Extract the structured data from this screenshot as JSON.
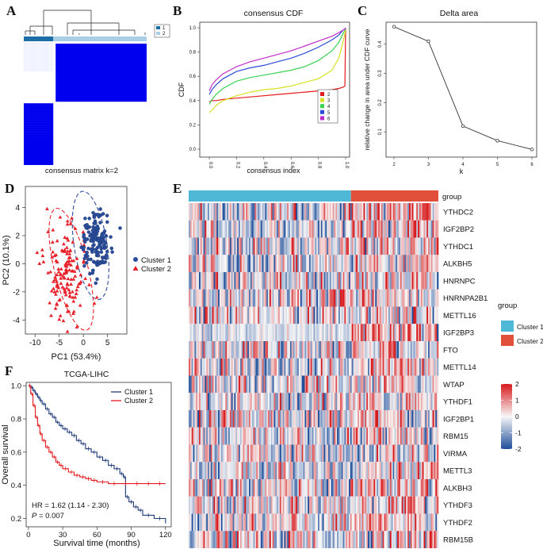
{
  "panel_letters": {
    "A": "A",
    "B": "B",
    "C": "C",
    "D": "D",
    "E": "E",
    "F": "F"
  },
  "colors": {
    "cluster1_blue": "#0000ee",
    "cluster_dark_blue": "#1c6ea8",
    "cluster_light_blue": "#a9cfe8",
    "pca_cluster1": "#2a4d9c",
    "pca_cluster2": "#e8202a",
    "km_cluster1": "#1f3a7a",
    "km_cluster2": "#e41a1c",
    "heat_group1": "#4fb8d6",
    "heat_group2": "#e0503a",
    "heat_high": "#d7191c",
    "heat_mid": "#f7f7f7",
    "heat_low": "#1f4e9a"
  },
  "chart_data": [
    {
      "id": "A",
      "type": "heatmap",
      "title": "",
      "xlabel": "consensus matrix k=2",
      "legend": [
        "1",
        "2"
      ],
      "clusters": [
        {
          "name": "1",
          "fraction": 0.24
        },
        {
          "name": "2",
          "fraction": 0.76
        }
      ]
    },
    {
      "id": "B",
      "type": "line",
      "title": "consensus CDF",
      "xlabel": "consensus index",
      "ylabel": "CDF",
      "xlim": [
        0,
        1
      ],
      "ylim": [
        0,
        1
      ],
      "xticks": [
        "0.0",
        "0.2",
        "0.4",
        "0.6",
        "0.8",
        "1.0"
      ],
      "yticks": [
        "0.0",
        "0.2",
        "0.4",
        "0.6",
        "0.8",
        "1.0"
      ],
      "x": [
        0.0,
        0.02,
        0.05,
        0.1,
        0.2,
        0.3,
        0.4,
        0.5,
        0.6,
        0.7,
        0.8,
        0.9,
        0.95,
        0.98,
        0.995,
        1.0
      ],
      "series": [
        {
          "name": "2",
          "color": "#e41a1c",
          "values": [
            0.39,
            0.4,
            0.4,
            0.41,
            0.42,
            0.43,
            0.44,
            0.45,
            0.46,
            0.47,
            0.48,
            0.49,
            0.5,
            0.51,
            0.52,
            1.0
          ]
        },
        {
          "name": "3",
          "color": "#d9e021",
          "values": [
            0.3,
            0.32,
            0.36,
            0.4,
            0.44,
            0.47,
            0.49,
            0.5,
            0.52,
            0.55,
            0.58,
            0.65,
            0.75,
            0.88,
            0.95,
            1.0
          ]
        },
        {
          "name": "4",
          "color": "#39d353",
          "values": [
            0.37,
            0.41,
            0.45,
            0.5,
            0.56,
            0.59,
            0.61,
            0.63,
            0.65,
            0.68,
            0.73,
            0.81,
            0.88,
            0.95,
            0.98,
            1.0
          ]
        },
        {
          "name": "5",
          "color": "#2a4bd7",
          "values": [
            0.45,
            0.49,
            0.53,
            0.58,
            0.64,
            0.67,
            0.69,
            0.72,
            0.75,
            0.79,
            0.84,
            0.9,
            0.94,
            0.98,
            0.99,
            1.0
          ]
        },
        {
          "name": "6",
          "color": "#c02cc9",
          "values": [
            0.48,
            0.53,
            0.57,
            0.62,
            0.68,
            0.72,
            0.75,
            0.78,
            0.81,
            0.85,
            0.89,
            0.93,
            0.96,
            0.98,
            0.99,
            1.0
          ]
        }
      ],
      "legend": [
        "2",
        "3",
        "4",
        "5",
        "6"
      ]
    },
    {
      "id": "C",
      "type": "line",
      "title": "Delta area",
      "xlabel": "k",
      "ylabel": "relative change in area under CDF curve",
      "x": [
        2,
        3,
        4,
        5,
        6
      ],
      "values": [
        0.46,
        0.41,
        0.12,
        0.07,
        0.04
      ],
      "xticks": [
        "2",
        "3",
        "4",
        "5",
        "6"
      ],
      "yticks": [
        "0.1",
        "0.2",
        "0.3",
        "0.4"
      ],
      "ylim": [
        0.03,
        0.47
      ]
    },
    {
      "id": "D",
      "type": "scatter",
      "title": "",
      "xlabel": "PC1 (53.4%)",
      "ylabel": "PC2 (10.1%)",
      "xlim": [
        -12,
        9
      ],
      "ylim": [
        -5,
        5.5
      ],
      "xticks": [
        "-10",
        "-5",
        "0",
        "5"
      ],
      "yticks": [
        "-4",
        "-2",
        "0",
        "2",
        "4"
      ],
      "legend": [
        "Cluster 1",
        "Cluster 2"
      ],
      "series": [
        {
          "name": "Cluster 1",
          "marker": "circle",
          "center": [
            2.5,
            1.5
          ],
          "spread": [
            2.2,
            1.4
          ],
          "n": 150
        },
        {
          "name": "Cluster 2",
          "marker": "triangle",
          "center": [
            -3.5,
            -0.8
          ],
          "spread": [
            3.0,
            1.7
          ],
          "n": 150
        }
      ],
      "ellipses": [
        {
          "name": "Cluster 1",
          "center": [
            1.5,
            1.3
          ],
          "radii": [
            6.2,
            4.1
          ],
          "rotation": -25
        },
        {
          "name": "Cluster 2",
          "center": [
            -2.5,
            -0.4
          ],
          "radii": [
            6.3,
            4.7
          ],
          "rotation": -40
        }
      ]
    },
    {
      "id": "E",
      "type": "heatmap",
      "title": "",
      "annotation_label": "group",
      "genes": [
        "YTHDC2",
        "IGF2BP2",
        "YTHDC1",
        "ALKBH5",
        "HNRNPC",
        "HNRNPA2B1",
        "METTL16",
        "IGF2BP3",
        "FTO",
        "METTL14",
        "WTAP",
        "YTHDF1",
        "IGF2BP1",
        "RBM15",
        "VIRMA",
        "METTL3",
        "ALKBH3",
        "YTHDF3",
        "YTHDF2",
        "RBM15B"
      ],
      "group_split": 0.65,
      "group_legend_title": "group",
      "group_legend": [
        "Cluster 1",
        "Cluster 2"
      ],
      "colorbar_ticks": [
        "2",
        "1",
        "0",
        "-1",
        "-2"
      ],
      "value_range": [
        -2,
        2
      ]
    },
    {
      "id": "F",
      "type": "line",
      "title": "TCGA-LIHC",
      "xlabel": "Survival time (months)",
      "ylabel": "Overall survival",
      "xlim": [
        -2,
        125
      ],
      "ylim": [
        0.15,
        1.02
      ],
      "xticks": [
        "0",
        "30",
        "60",
        "90",
        "120"
      ],
      "yticks": [
        "0.2",
        "0.4",
        "0.6",
        "0.8",
        "1.0"
      ],
      "legend": [
        "Cluster 1",
        "Cluster 2"
      ],
      "series": [
        {
          "name": "Cluster 1",
          "x": [
            0,
            2,
            4,
            6,
            8,
            10,
            12,
            15,
            18,
            21,
            24,
            27,
            30,
            34,
            38,
            42,
            46,
            50,
            55,
            60,
            65,
            70,
            75,
            80,
            83,
            85,
            88,
            92,
            96,
            100,
            110,
            120
          ],
          "values": [
            1.0,
            0.99,
            0.97,
            0.95,
            0.93,
            0.91,
            0.89,
            0.86,
            0.83,
            0.81,
            0.78,
            0.76,
            0.74,
            0.72,
            0.7,
            0.67,
            0.65,
            0.62,
            0.6,
            0.57,
            0.55,
            0.52,
            0.5,
            0.47,
            0.45,
            0.33,
            0.3,
            0.27,
            0.25,
            0.22,
            0.2,
            0.17
          ]
        },
        {
          "name": "Cluster 2",
          "x": [
            0,
            2,
            4,
            6,
            8,
            10,
            12,
            15,
            18,
            21,
            24,
            27,
            30,
            35,
            40,
            45,
            50,
            55,
            60,
            70,
            80,
            90,
            100,
            110,
            120
          ],
          "values": [
            1.0,
            0.95,
            0.88,
            0.81,
            0.76,
            0.71,
            0.67,
            0.63,
            0.6,
            0.57,
            0.54,
            0.52,
            0.5,
            0.48,
            0.46,
            0.45,
            0.44,
            0.43,
            0.42,
            0.41,
            0.41,
            0.41,
            0.41,
            0.41,
            0.41
          ]
        }
      ],
      "annotations": {
        "hr": "HR = 1.62 (1.14 -  2.30)",
        "p_label": "P",
        "p_value": " = 0.007"
      }
    }
  ]
}
